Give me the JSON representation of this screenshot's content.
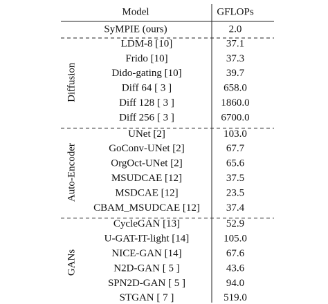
{
  "table": {
    "header": [
      "Model",
      "GFLOPs"
    ],
    "top_row": [
      "SyMPIE (ours)",
      "2.0"
    ],
    "groups": [
      {
        "label": "Diffusion",
        "rows": [
          [
            "LDM-8 [10]",
            "37.1"
          ],
          [
            "Frido [10]",
            "37.3"
          ],
          [
            "Dido-gating [10]",
            "39.7"
          ],
          [
            "Diff 64 [ 3 ]",
            "658.0"
          ],
          [
            "Diff 128 [ 3 ]",
            "1860.0"
          ],
          [
            "Diff 256 [ 3 ]",
            "6700.0"
          ]
        ]
      },
      {
        "label": "Auto-Encoder",
        "rows": [
          [
            "UNet [2]",
            "103.0"
          ],
          [
            "GoConv-UNet [2]",
            "67.7"
          ],
          [
            "OrgOct-UNet [2]",
            "65.6"
          ],
          [
            "MSUDCAE [12]",
            "37.5"
          ],
          [
            "MSDCAE [12]",
            "23.5"
          ],
          [
            "CBAM_MSUDCAE [12]",
            "37.4"
          ]
        ]
      },
      {
        "label": "GANs",
        "rows": [
          [
            "CycleGAN [13]",
            "52.9"
          ],
          [
            "U-GAT-IT-light [14]",
            "105.0"
          ],
          [
            "NICE-GAN [14]",
            "67.6"
          ],
          [
            "N2D-GAN [ 5 ]",
            "43.6"
          ],
          [
            "SPN2D-GAN [ 5 ]",
            "94.0"
          ],
          [
            "STGAN [ 7 ]",
            "519.0"
          ]
        ]
      }
    ]
  }
}
